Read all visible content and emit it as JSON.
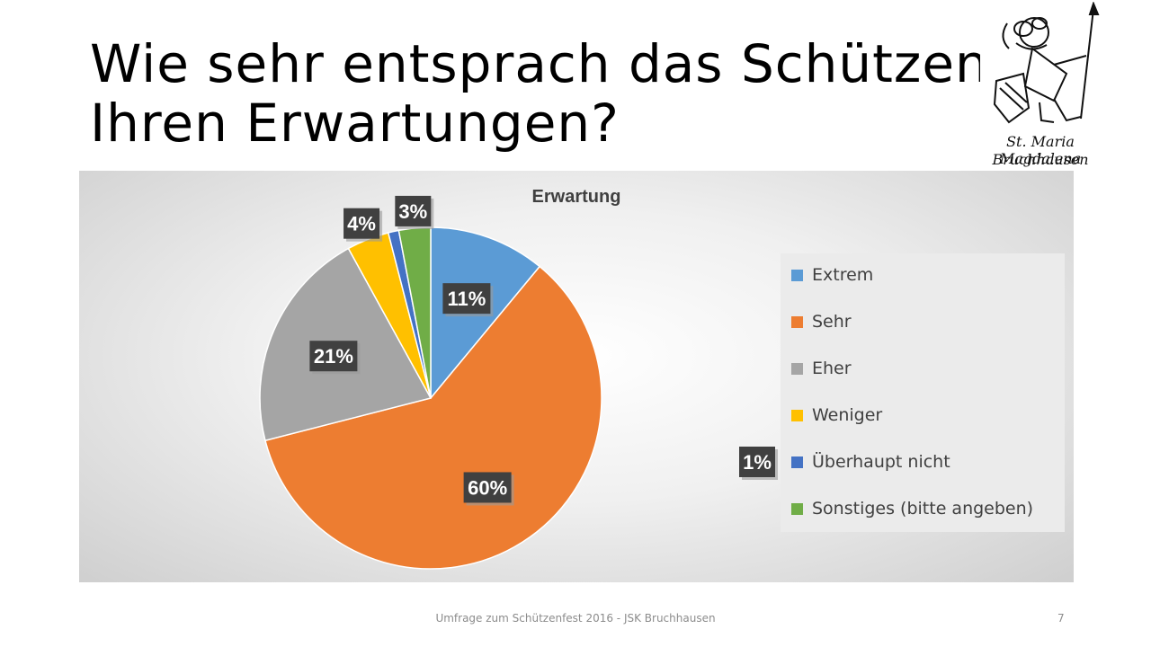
{
  "slide": {
    "title_line1": "Wie sehr entsprach das Schützenfest",
    "title_line2": "Ihren Erwartungen?",
    "footer": "Umfrage zum Schützenfest 2016 - JSK Bruchhausen",
    "page_number": "7"
  },
  "logo": {
    "line1": "St. Maria Magdalena",
    "line2": "Bruchhausen"
  },
  "chart_data": {
    "type": "pie",
    "title": "Erwartung",
    "legend_position": "right",
    "categories": [
      "Extrem",
      "Sehr",
      "Eher",
      "Weniger",
      "Überhaupt nicht",
      "Sonstiges (bitte angeben)"
    ],
    "values": [
      11,
      60,
      21,
      4,
      1,
      3
    ],
    "data_labels": [
      "11%",
      "60%",
      "21%",
      "4%",
      "1%",
      "3%"
    ],
    "colors": [
      "#5b9bd5",
      "#ed7d31",
      "#a5a5a5",
      "#ffc000",
      "#4472c4",
      "#70ad47"
    ],
    "label_style": {
      "background": "#404040",
      "text_color": "#ffffff"
    }
  }
}
